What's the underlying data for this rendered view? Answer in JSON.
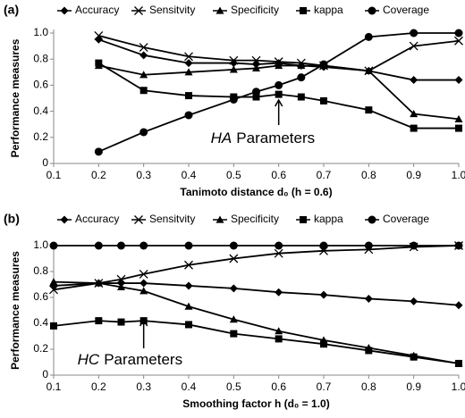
{
  "chart_data": [
    {
      "type": "line",
      "panel_label": "(a)",
      "x_label": "Tanimoto distance d₀ (h = 0.6)",
      "y_label": "Performance measures",
      "x": [
        0.2,
        0.3,
        0.4,
        0.5,
        0.55,
        0.6,
        0.65,
        0.7,
        0.8,
        0.9,
        1.0
      ],
      "series": [
        {
          "name": "Accuracy",
          "color": "#000000",
          "marker": "diamond",
          "values": [
            0.95,
            0.83,
            0.77,
            0.77,
            0.76,
            0.77,
            0.75,
            0.74,
            0.71,
            0.64,
            0.64
          ]
        },
        {
          "name": "Sensitvity",
          "color": "#000000",
          "marker": "x",
          "values": [
            0.98,
            0.89,
            0.82,
            0.79,
            0.79,
            0.78,
            0.77,
            0.75,
            0.71,
            0.9,
            0.94
          ]
        },
        {
          "name": "Specificity",
          "color": "#000000",
          "marker": "triangle",
          "values": [
            0.75,
            0.68,
            0.7,
            0.72,
            0.73,
            0.75,
            0.75,
            0.75,
            0.71,
            0.38,
            0.34
          ]
        },
        {
          "name": "kappa",
          "color": "#000000",
          "marker": "square",
          "values": [
            0.77,
            0.56,
            0.52,
            0.51,
            0.51,
            0.53,
            0.51,
            0.48,
            0.41,
            0.27,
            0.27
          ]
        },
        {
          "name": "Coverage",
          "color": "#000000",
          "marker": "circle",
          "values": [
            0.09,
            0.24,
            0.37,
            0.49,
            0.55,
            0.6,
            0.66,
            0.76,
            0.97,
            1.0,
            1.0
          ]
        }
      ],
      "xlim": [
        0.1,
        1
      ],
      "xticks": [
        0.1,
        0.2,
        0.3,
        0.4,
        0.5,
        0.6,
        0.7,
        0.8,
        0.9,
        {
          "value": 1,
          "label": "1.0"
        }
      ],
      "ylim": [
        0,
        1
      ],
      "yticks": [
        0,
        0.2,
        0.4,
        0.6,
        0.8,
        {
          "value": 1,
          "label": "1.0"
        }
      ],
      "annotation": {
        "emphasis": "HA",
        "text": "Parameters",
        "x": 0.6
      }
    },
    {
      "type": "line",
      "panel_label": "(b)",
      "x_label": "Smoothing factor h (d₀ = 1.0)",
      "y_label": "Performance measures",
      "x": [
        0.1,
        0.2,
        0.25,
        0.3,
        0.4,
        0.5,
        0.6,
        0.7,
        0.8,
        0.9,
        1.0
      ],
      "series": [
        {
          "name": "Accuracy",
          "color": "#000000",
          "marker": "diamond",
          "values": [
            0.69,
            0.71,
            0.71,
            0.71,
            0.69,
            0.67,
            0.64,
            0.62,
            0.59,
            0.57,
            0.54
          ]
        },
        {
          "name": "Sensitvity",
          "color": "#000000",
          "marker": "x",
          "values": [
            0.66,
            0.71,
            0.74,
            0.78,
            0.85,
            0.9,
            0.94,
            0.96,
            0.97,
            0.99,
            1.0
          ]
        },
        {
          "name": "Specificity",
          "color": "#000000",
          "marker": "triangle",
          "values": [
            0.72,
            0.71,
            0.68,
            0.65,
            0.53,
            0.43,
            0.34,
            0.27,
            0.21,
            0.15,
            0.09
          ]
        },
        {
          "name": "kappa",
          "color": "#000000",
          "marker": "square",
          "values": [
            0.38,
            0.42,
            0.41,
            0.42,
            0.39,
            0.32,
            0.28,
            0.24,
            0.19,
            0.14,
            0.09
          ]
        },
        {
          "name": "Coverage",
          "color": "#000000",
          "marker": "circle",
          "values": [
            1.0,
            1.0,
            1.0,
            1.0,
            1.0,
            1.0,
            1.0,
            1.0,
            1.0,
            1.0,
            1.0
          ]
        }
      ],
      "xlim": [
        0.1,
        1
      ],
      "xticks": [
        0.1,
        0.2,
        0.3,
        0.4,
        0.5,
        0.6,
        0.7,
        0.8,
        0.9,
        {
          "value": 1,
          "label": "1.0"
        }
      ],
      "ylim": [
        0,
        1
      ],
      "yticks": [
        0,
        0.2,
        0.4,
        0.6,
        0.8,
        {
          "value": 1,
          "label": "1.0"
        }
      ],
      "annotation": {
        "emphasis": "HC",
        "text": "Parameters",
        "x": 0.3
      }
    }
  ]
}
